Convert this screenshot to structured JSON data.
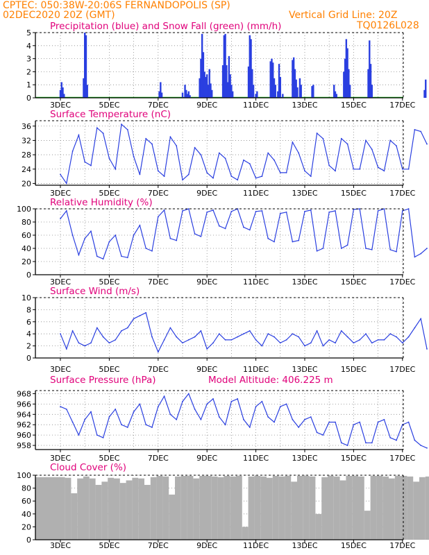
{
  "header": {
    "line1_left": "CPTEC:   050:38W-20:06S   FERNANDOPOLIS (SP)",
    "line2_left": "02DEC2020 20Z (GMT)",
    "line2_right": "Vertical Grid Line: 20Z",
    "line3_right": "TQ0126L028"
  },
  "colors": {
    "header": "#ff8000",
    "title": "#e0007a",
    "line": "#2a3fe0",
    "bar_precip": "#2a3fe0",
    "bar_snow": "#00b000",
    "cloud": "#b0b0b0"
  },
  "x_axis": {
    "labels": [
      "3DEC",
      "5DEC",
      "7DEC",
      "9DEC",
      "11DEC",
      "13DEC",
      "15DEC",
      "17DEC"
    ]
  },
  "chart_data": [
    {
      "type": "bar",
      "title": "Precipitation (blue) and Snow Fall (green) (mm/h)",
      "yticks": [
        0,
        1,
        2,
        3,
        4,
        5
      ],
      "ylim": [
        0,
        5
      ],
      "series": [
        {
          "name": "Precipitation",
          "color": "blue",
          "values": [
            [
              0.0,
              0.6
            ],
            [
              0.05,
              1.2
            ],
            [
              0.1,
              0.8
            ],
            [
              0.15,
              0.3
            ],
            [
              0.95,
              1.5
            ],
            [
              1.0,
              5.0
            ],
            [
              1.05,
              4.8
            ],
            [
              1.1,
              1.0
            ],
            [
              4.05,
              0.5
            ],
            [
              4.1,
              1.2
            ],
            [
              4.15,
              0.4
            ],
            [
              5.0,
              0.4
            ],
            [
              5.1,
              1.0
            ],
            [
              5.15,
              0.6
            ],
            [
              5.2,
              0.3
            ],
            [
              5.25,
              0.5
            ],
            [
              5.3,
              0.2
            ],
            [
              5.7,
              1.5
            ],
            [
              5.75,
              3.0
            ],
            [
              5.8,
              4.9
            ],
            [
              5.85,
              3.5
            ],
            [
              5.9,
              2.0
            ],
            [
              5.95,
              1.6
            ],
            [
              6.0,
              1.8
            ],
            [
              6.05,
              1.0
            ],
            [
              6.1,
              2.2
            ],
            [
              6.15,
              1.1
            ],
            [
              6.2,
              0.6
            ],
            [
              6.65,
              2.5
            ],
            [
              6.7,
              4.8
            ],
            [
              6.75,
              4.9
            ],
            [
              6.8,
              2.5
            ],
            [
              6.85,
              1.2
            ],
            [
              6.9,
              3.2
            ],
            [
              6.95,
              1.8
            ],
            [
              7.0,
              1.0
            ],
            [
              7.05,
              0.5
            ],
            [
              7.7,
              2.4
            ],
            [
              7.75,
              4.8
            ],
            [
              7.8,
              4.5
            ],
            [
              7.85,
              2.2
            ],
            [
              7.9,
              1.0
            ],
            [
              8.0,
              0.3
            ],
            [
              8.05,
              0.5
            ],
            [
              8.6,
              2.8
            ],
            [
              8.65,
              3.0
            ],
            [
              8.7,
              2.7
            ],
            [
              8.75,
              1.5
            ],
            [
              8.8,
              1.0
            ],
            [
              8.9,
              0.5
            ],
            [
              8.95,
              2.6
            ],
            [
              9.0,
              1.6
            ],
            [
              9.1,
              0.3
            ],
            [
              9.5,
              2.9
            ],
            [
              9.55,
              3.1
            ],
            [
              9.6,
              2.2
            ],
            [
              9.65,
              1.4
            ],
            [
              9.7,
              0.8
            ],
            [
              9.8,
              1.5
            ],
            [
              9.85,
              1.0
            ],
            [
              10.3,
              0.9
            ],
            [
              10.35,
              1.0
            ],
            [
              11.2,
              1.0
            ],
            [
              11.25,
              0.5
            ],
            [
              11.3,
              0.3
            ],
            [
              11.6,
              2.0
            ],
            [
              11.65,
              3.0
            ],
            [
              11.7,
              4.5
            ],
            [
              11.75,
              3.8
            ],
            [
              11.8,
              2.2
            ],
            [
              11.85,
              1.0
            ],
            [
              12.6,
              2.2
            ],
            [
              12.65,
              4.4
            ],
            [
              12.7,
              2.6
            ],
            [
              12.75,
              1.0
            ],
            [
              14.9,
              0.6
            ],
            [
              14.95,
              1.4
            ]
          ]
        },
        {
          "name": "Snow Fall",
          "color": "green",
          "values": []
        }
      ]
    },
    {
      "type": "line",
      "title": "Surface Temperature (nC)",
      "yticks": [
        20,
        24,
        28,
        32,
        36
      ],
      "ylim": [
        19.5,
        37.5
      ],
      "x": [
        0.0,
        0.25,
        0.5,
        0.75,
        1.0,
        1.25,
        1.5,
        1.75,
        2.0,
        2.25,
        2.5,
        2.75,
        3.0,
        3.25,
        3.5,
        3.75,
        4.0,
        4.25,
        4.5,
        4.75,
        5.0,
        5.25,
        5.5,
        5.75,
        6.0,
        6.25,
        6.5,
        6.75,
        7.0,
        7.25,
        7.5,
        7.75,
        8.0,
        8.25,
        8.5,
        8.75,
        9.0,
        9.25,
        9.5,
        9.75,
        10.0,
        10.25,
        10.5,
        10.75,
        11.0,
        11.25,
        11.5,
        11.75,
        12.0,
        12.25,
        12.5,
        12.75,
        13.0,
        13.25,
        13.5,
        13.75,
        14.0,
        14.25,
        14.5,
        14.75,
        15.0
      ],
      "values": [
        22.5,
        20.0,
        29.0,
        33.5,
        26.0,
        25.0,
        35.5,
        34.0,
        27.0,
        24.0,
        36.5,
        35.0,
        27.5,
        22.5,
        32.5,
        31.0,
        23.5,
        22.0,
        33.0,
        30.5,
        21.0,
        22.5,
        30.0,
        28.0,
        23.0,
        21.5,
        28.5,
        27.0,
        22.0,
        21.0,
        26.5,
        25.5,
        21.5,
        22.0,
        28.5,
        26.5,
        23.0,
        23.0,
        31.5,
        28.5,
        23.5,
        22.0,
        34.0,
        32.5,
        25.0,
        23.5,
        32.5,
        31.0,
        24.0,
        24.0,
        32.0,
        29.5,
        24.5,
        23.5,
        32.0,
        30.5,
        24.0,
        24.0,
        35.0,
        34.5,
        31.0
      ]
    },
    {
      "type": "line",
      "title": "Relative Humidity (%)",
      "yticks": [
        0,
        20,
        40,
        60,
        80,
        100
      ],
      "ylim": [
        0,
        100
      ],
      "x": [
        0.0,
        0.25,
        0.5,
        0.75,
        1.0,
        1.25,
        1.5,
        1.75,
        2.0,
        2.25,
        2.5,
        2.75,
        3.0,
        3.25,
        3.5,
        3.75,
        4.0,
        4.25,
        4.5,
        4.75,
        5.0,
        5.25,
        5.5,
        5.75,
        6.0,
        6.25,
        6.5,
        6.75,
        7.0,
        7.25,
        7.5,
        7.75,
        8.0,
        8.25,
        8.5,
        8.75,
        9.0,
        9.25,
        9.5,
        9.75,
        10.0,
        10.25,
        10.5,
        10.75,
        11.0,
        11.25,
        11.5,
        11.75,
        12.0,
        12.25,
        12.5,
        12.75,
        13.0,
        13.25,
        13.5,
        13.75,
        14.0,
        14.25,
        14.5,
        14.75,
        15.0
      ],
      "values": [
        85.0,
        97.0,
        60.0,
        30.0,
        55.0,
        66.0,
        28.0,
        24.0,
        50.0,
        60.0,
        28.0,
        26.0,
        60.0,
        75.0,
        40.0,
        36.0,
        88.0,
        98.0,
        55.0,
        52.0,
        97.0,
        100.0,
        62.0,
        58.0,
        95.0,
        98.0,
        74.0,
        70.0,
        96.0,
        100.0,
        72.0,
        68.0,
        96.0,
        97.0,
        55.0,
        50.0,
        93.0,
        95.0,
        50.0,
        52.0,
        96.0,
        98.0,
        36.0,
        40.0,
        95.0,
        97.0,
        40.0,
        45.0,
        99.0,
        100.0,
        40.0,
        38.0,
        97.0,
        100.0,
        38.0,
        35.0,
        97.0,
        100.0,
        27.0,
        32.0,
        40.0
      ]
    },
    {
      "type": "line",
      "title": "Surface Wind (m/s)",
      "yticks": [
        0,
        2,
        4,
        6,
        8,
        10
      ],
      "ylim": [
        0,
        10
      ],
      "x": [
        0.0,
        0.25,
        0.5,
        0.75,
        1.0,
        1.25,
        1.5,
        1.75,
        2.0,
        2.25,
        2.5,
        2.75,
        3.0,
        3.25,
        3.5,
        3.75,
        4.0,
        4.25,
        4.5,
        4.75,
        5.0,
        5.25,
        5.5,
        5.75,
        6.0,
        6.25,
        6.5,
        6.75,
        7.0,
        7.25,
        7.5,
        7.75,
        8.0,
        8.25,
        8.5,
        8.75,
        9.0,
        9.25,
        9.5,
        9.75,
        10.0,
        10.25,
        10.5,
        10.75,
        11.0,
        11.25,
        11.5,
        11.75,
        12.0,
        12.25,
        12.5,
        12.75,
        13.0,
        13.25,
        13.5,
        13.75,
        14.0,
        14.25,
        14.5,
        14.75,
        15.0
      ],
      "values": [
        4.0,
        1.5,
        4.5,
        2.5,
        2.0,
        2.5,
        5.0,
        3.5,
        2.5,
        3.0,
        4.5,
        5.0,
        6.5,
        7.0,
        7.5,
        3.5,
        1.0,
        3.0,
        5.0,
        3.5,
        2.5,
        3.0,
        3.5,
        4.5,
        1.5,
        2.5,
        4.0,
        3.0,
        3.0,
        3.5,
        4.0,
        4.5,
        3.0,
        2.0,
        4.0,
        3.5,
        2.5,
        3.0,
        4.0,
        3.5,
        2.0,
        2.5,
        4.5,
        2.0,
        3.0,
        2.5,
        4.5,
        3.5,
        2.5,
        3.0,
        4.0,
        2.5,
        3.0,
        3.0,
        4.0,
        3.5,
        2.5,
        3.5,
        5.0,
        6.5,
        1.5
      ]
    },
    {
      "type": "line",
      "title": "Surface Pressure (hPa)",
      "annotation": "Model Altitude: 406.225 m",
      "yticks": [
        958,
        960,
        962,
        964,
        966,
        968
      ],
      "ylim": [
        957.2,
        968.6
      ],
      "x": [
        0.0,
        0.25,
        0.5,
        0.75,
        1.0,
        1.25,
        1.5,
        1.75,
        2.0,
        2.25,
        2.5,
        2.75,
        3.0,
        3.25,
        3.5,
        3.75,
        4.0,
        4.25,
        4.5,
        4.75,
        5.0,
        5.25,
        5.5,
        5.75,
        6.0,
        6.25,
        6.5,
        6.75,
        7.0,
        7.25,
        7.5,
        7.75,
        8.0,
        8.25,
        8.5,
        8.75,
        9.0,
        9.25,
        9.5,
        9.75,
        10.0,
        10.25,
        10.5,
        10.75,
        11.0,
        11.25,
        11.5,
        11.75,
        12.0,
        12.25,
        12.5,
        12.75,
        13.0,
        13.25,
        13.5,
        13.75,
        14.0,
        14.25,
        14.5,
        14.75,
        15.0
      ],
      "values": [
        965.5,
        965.0,
        962.5,
        960.0,
        963.0,
        964.5,
        960.0,
        959.5,
        963.5,
        965.0,
        962.0,
        961.5,
        964.5,
        966.0,
        962.0,
        961.5,
        965.5,
        967.5,
        964.0,
        963.0,
        966.5,
        968.0,
        965.0,
        963.0,
        966.0,
        967.0,
        963.5,
        962.0,
        966.5,
        967.0,
        963.0,
        961.5,
        965.5,
        966.5,
        963.5,
        962.5,
        965.5,
        966.0,
        963.0,
        961.5,
        963.0,
        963.5,
        960.5,
        960.0,
        962.5,
        962.5,
        958.5,
        958.0,
        962.0,
        962.5,
        958.5,
        958.5,
        962.5,
        963.0,
        959.5,
        959.0,
        962.0,
        962.5,
        959.0,
        958.0,
        957.5
      ]
    },
    {
      "type": "area",
      "title": "Cloud Cover (%)",
      "yticks": [
        0,
        20,
        40,
        60,
        80,
        100
      ],
      "ylim": [
        0,
        100
      ],
      "x": [
        0.0,
        0.25,
        0.5,
        0.75,
        1.0,
        1.25,
        1.5,
        1.75,
        2.0,
        2.25,
        2.5,
        2.75,
        3.0,
        3.25,
        3.5,
        3.75,
        4.0,
        4.25,
        4.5,
        4.75,
        5.0,
        5.25,
        5.5,
        5.75,
        6.0,
        6.25,
        6.5,
        6.75,
        7.0,
        7.25,
        7.5,
        7.75,
        8.0,
        8.25,
        8.5,
        8.75,
        9.0,
        9.25,
        9.5,
        9.75,
        10.0,
        10.25,
        10.5,
        10.75,
        11.0,
        11.25,
        11.5,
        11.75,
        12.0,
        12.25,
        12.5,
        12.75,
        13.0,
        13.25,
        13.5,
        13.75,
        14.0,
        14.25,
        14.5,
        14.75,
        15.0
      ],
      "values": [
        97.0,
        96.0,
        72.0,
        95.0,
        98.0,
        95.0,
        85.0,
        90.0,
        96.0,
        95.0,
        88.0,
        92.0,
        96.0,
        95.0,
        85.0,
        97.0,
        99.0,
        98.0,
        70.0,
        98.0,
        99.0,
        99.0,
        95.0,
        99.0,
        99.0,
        98.0,
        97.0,
        99.0,
        98.0,
        99.0,
        20.0,
        98.0,
        99.0,
        98.0,
        96.0,
        99.0,
        98.0,
        99.0,
        90.0,
        99.0,
        99.0,
        98.0,
        40.0,
        97.0,
        99.0,
        98.0,
        92.0,
        99.0,
        99.0,
        98.0,
        45.0,
        99.0,
        99.0,
        98.0,
        95.0,
        99.0,
        99.0,
        98.0,
        90.0,
        97.0,
        98.0
      ]
    }
  ]
}
